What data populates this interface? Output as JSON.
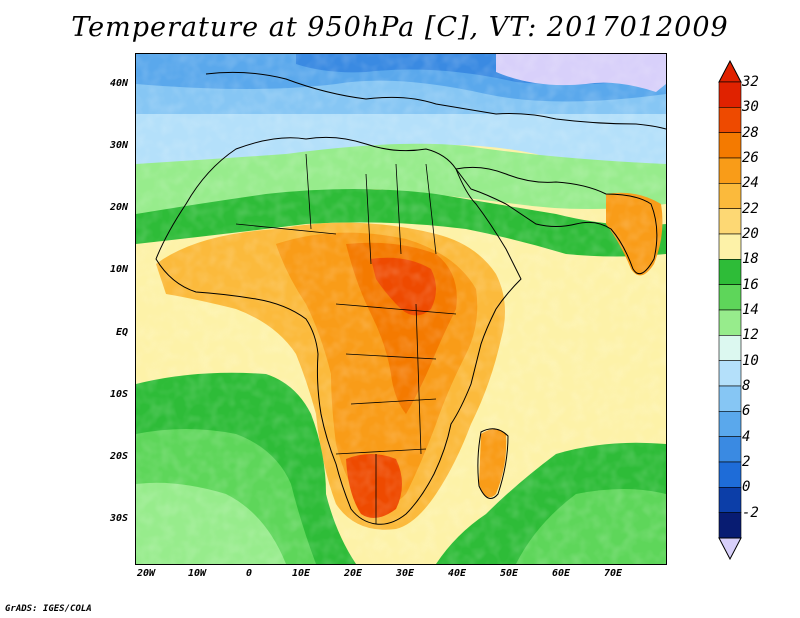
{
  "title": "Temperature at 950hPa [C], VT: 2017012009",
  "credit": "GrADS: IGES/COLA",
  "map": {
    "lat_labels": [
      "40N",
      "30N",
      "20N",
      "10N",
      "EQ",
      "10S",
      "20S",
      "30S"
    ],
    "lon_labels": [
      "20W",
      "10W",
      "0",
      "10E",
      "20E",
      "30E",
      "40E",
      "50E",
      "60E",
      "70E"
    ],
    "lon_range": [
      "20W",
      "80E"
    ],
    "lat_range": [
      "37S",
      "45N"
    ]
  },
  "colorbar": {
    "units": "C",
    "labels": [
      "32",
      "30",
      "28",
      "26",
      "24",
      "22",
      "20",
      "18",
      "16",
      "14",
      "12",
      "10",
      "8",
      "6",
      "4",
      "2",
      "0",
      "-2"
    ],
    "colors": [
      "#e02200",
      "#ee4a00",
      "#f47a00",
      "#f99c18",
      "#fbba3c",
      "#fdd874",
      "#fdf2a8",
      "#2ebc38",
      "#5ed65a",
      "#97ec8c",
      "#dcf8f0",
      "#b4e0fa",
      "#86c6f4",
      "#5aa8ec",
      "#3a8ae2",
      "#1e6cd8",
      "#0c3ea8",
      "#081c72"
    ],
    "over_color": "#e02200",
    "under_color": "#d8d0fa"
  }
}
